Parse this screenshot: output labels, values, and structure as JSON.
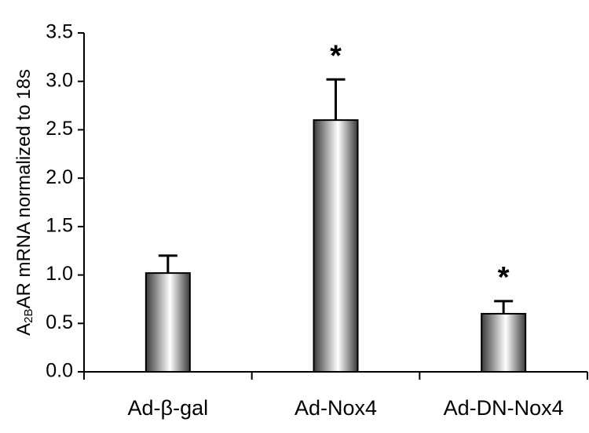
{
  "chart_data": {
    "type": "bar",
    "ylabel": {
      "base": "A",
      "sub": "2B",
      "rest": "AR mRNA normalized to 18s"
    },
    "categories": [
      "Ad-β-gal",
      "Ad-Nox4",
      "Ad-DN-Nox4"
    ],
    "values": [
      1.02,
      2.6,
      0.6
    ],
    "errors": [
      0.18,
      0.42,
      0.13
    ],
    "significance": [
      null,
      "*",
      "*"
    ],
    "color": "#4d4d4d",
    "ylim": [
      0,
      3.5
    ],
    "yticks": [
      {
        "value": 0,
        "label": "0.0"
      },
      0.5,
      {
        "value": 1,
        "label": "1.0"
      },
      1.5,
      {
        "value": 2,
        "label": "2.0"
      },
      2.5,
      {
        "value": 3,
        "label": "3.0"
      },
      3.5
    ],
    "grid": false
  }
}
